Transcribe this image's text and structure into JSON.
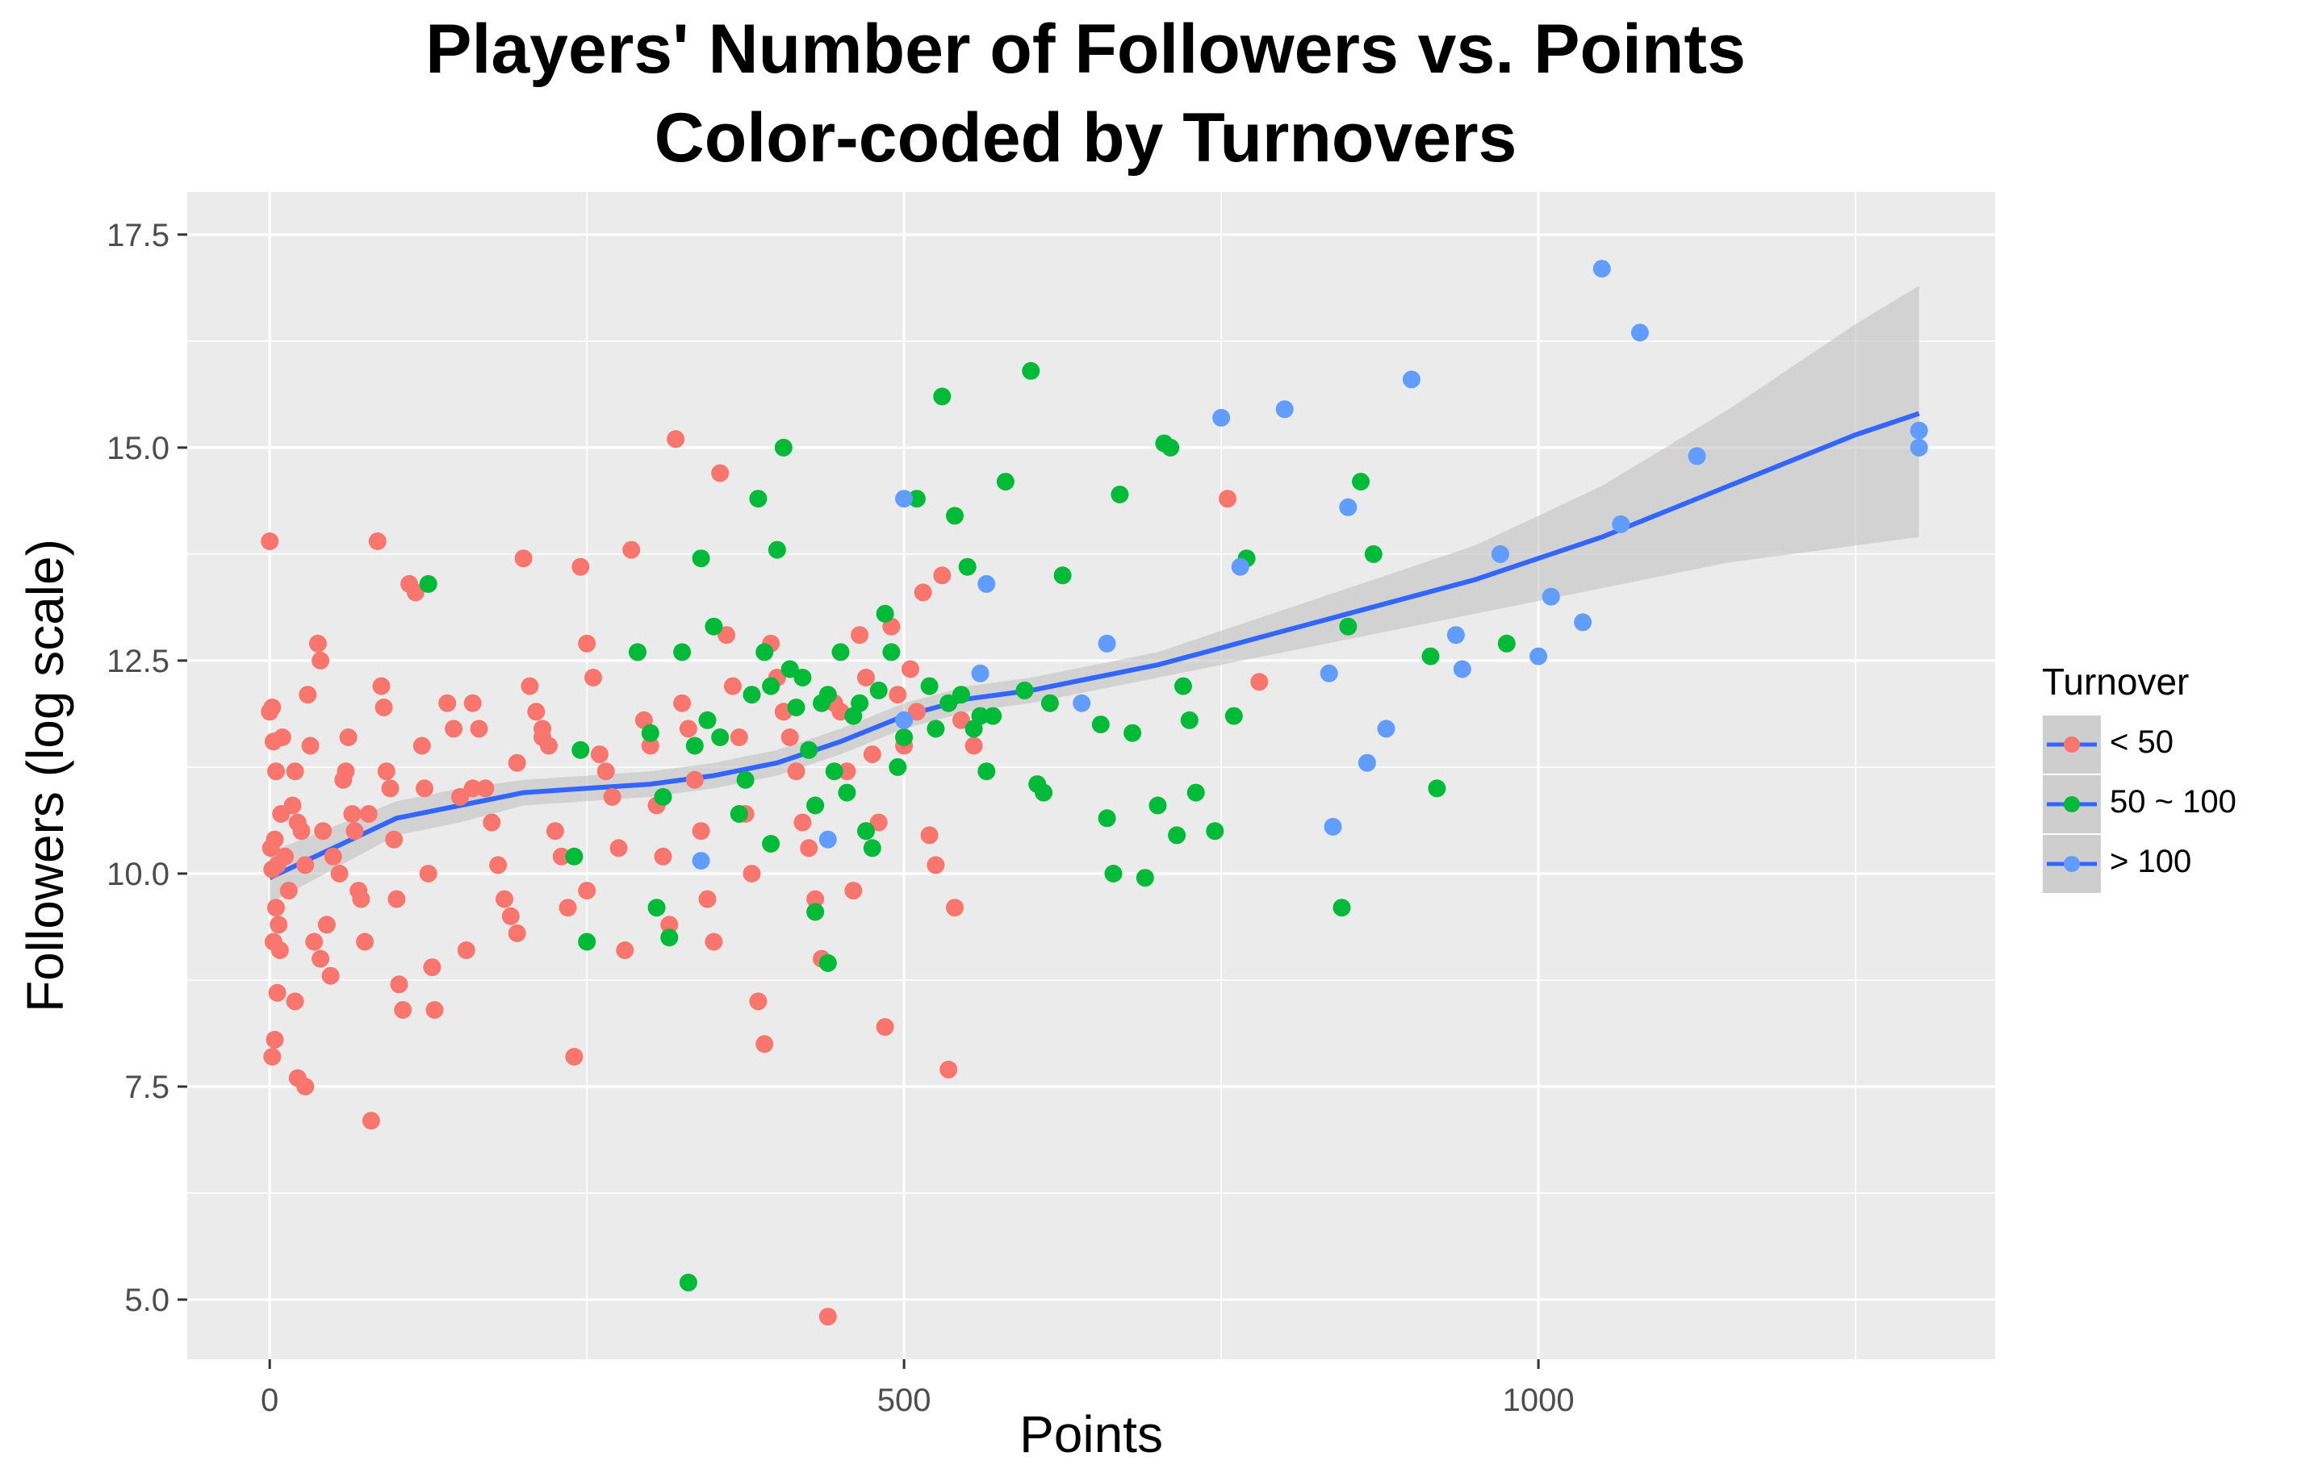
{
  "chart_data": {
    "type": "scatter",
    "title": "Players' Number of Followers vs. Points",
    "subtitle": "Color-coded by Turnovers",
    "xlabel": "Points",
    "ylabel": "Followers (log scale)",
    "xlim": [
      -65,
      1360
    ],
    "ylim": [
      4.3,
      18.0
    ],
    "x_ticks": [
      0,
      500,
      1000
    ],
    "x_tick_labels": [
      "0",
      "500",
      "1000"
    ],
    "y_ticks": [
      5.0,
      7.5,
      10.0,
      12.5,
      15.0,
      17.5
    ],
    "y_tick_labels": [
      "5.0",
      "7.5",
      "10.0",
      "12.5",
      "15.0",
      "17.5"
    ],
    "grid": true,
    "legend": {
      "title": "Turnover",
      "position": "right"
    },
    "colors": {
      "panel": "#EBEBEB",
      "grid": "#FFFFFF",
      "band": "#BEBEBE",
      "trend": "#3366FF"
    },
    "series": [
      {
        "name": "< 50",
        "color": "#F8766D",
        "points": [
          [
            0,
            13.9
          ],
          [
            0,
            11.9
          ],
          [
            2,
            11.95
          ],
          [
            3,
            11.55
          ],
          [
            5,
            11.2
          ],
          [
            1,
            10.3
          ],
          [
            4,
            10.4
          ],
          [
            6,
            10.1
          ],
          [
            2,
            10.05
          ],
          [
            5,
            9.6
          ],
          [
            7,
            9.4
          ],
          [
            3,
            9.2
          ],
          [
            8,
            9.1
          ],
          [
            6,
            8.6
          ],
          [
            4,
            8.05
          ],
          [
            2,
            7.85
          ],
          [
            9,
            10.7
          ],
          [
            12,
            10.2
          ],
          [
            15,
            9.8
          ],
          [
            10,
            11.6
          ],
          [
            18,
            10.8
          ],
          [
            20,
            11.2
          ],
          [
            22,
            10.6
          ],
          [
            25,
            10.5
          ],
          [
            28,
            10.1
          ],
          [
            30,
            12.1
          ],
          [
            32,
            11.5
          ],
          [
            35,
            9.2
          ],
          [
            40,
            9.0
          ],
          [
            20,
            8.5
          ],
          [
            22,
            7.6
          ],
          [
            28,
            7.5
          ],
          [
            38,
            12.7
          ],
          [
            40,
            12.5
          ],
          [
            42,
            10.5
          ],
          [
            45,
            9.4
          ],
          [
            48,
            8.8
          ],
          [
            50,
            10.2
          ],
          [
            55,
            10.0
          ],
          [
            58,
            11.1
          ],
          [
            60,
            11.2
          ],
          [
            62,
            11.6
          ],
          [
            65,
            10.7
          ],
          [
            67,
            10.5
          ],
          [
            70,
            9.8
          ],
          [
            72,
            9.7
          ],
          [
            75,
            9.2
          ],
          [
            78,
            10.7
          ],
          [
            80,
            7.1
          ],
          [
            85,
            13.9
          ],
          [
            88,
            12.2
          ],
          [
            90,
            11.95
          ],
          [
            92,
            11.2
          ],
          [
            95,
            11.0
          ],
          [
            98,
            10.4
          ],
          [
            100,
            9.7
          ],
          [
            102,
            8.7
          ],
          [
            105,
            8.4
          ],
          [
            110,
            13.4
          ],
          [
            115,
            13.3
          ],
          [
            120,
            11.5
          ],
          [
            122,
            11.0
          ],
          [
            125,
            10.0
          ],
          [
            128,
            8.9
          ],
          [
            130,
            8.4
          ],
          [
            140,
            12.0
          ],
          [
            145,
            11.7
          ],
          [
            150,
            10.9
          ],
          [
            155,
            9.1
          ],
          [
            160,
            12.0
          ],
          [
            165,
            11.7
          ],
          [
            170,
            11.0
          ],
          [
            175,
            10.6
          ],
          [
            180,
            10.1
          ],
          [
            185,
            9.7
          ],
          [
            190,
            9.5
          ],
          [
            195,
            9.3
          ],
          [
            200,
            13.7
          ],
          [
            205,
            12.2
          ],
          [
            210,
            11.9
          ],
          [
            215,
            11.6
          ],
          [
            220,
            11.5
          ],
          [
            225,
            10.5
          ],
          [
            230,
            10.2
          ],
          [
            235,
            9.6
          ],
          [
            240,
            7.85
          ],
          [
            245,
            13.6
          ],
          [
            250,
            12.7
          ],
          [
            255,
            12.3
          ],
          [
            260,
            11.4
          ],
          [
            265,
            11.2
          ],
          [
            270,
            10.9
          ],
          [
            275,
            10.3
          ],
          [
            280,
            9.1
          ],
          [
            285,
            13.8
          ],
          [
            290,
            12.6
          ],
          [
            295,
            11.8
          ],
          [
            300,
            11.5
          ],
          [
            305,
            10.8
          ],
          [
            310,
            10.2
          ],
          [
            315,
            9.4
          ],
          [
            320,
            15.1
          ],
          [
            325,
            12.0
          ],
          [
            330,
            11.7
          ],
          [
            335,
            11.1
          ],
          [
            340,
            10.5
          ],
          [
            345,
            9.7
          ],
          [
            350,
            9.2
          ],
          [
            355,
            14.7
          ],
          [
            360,
            12.8
          ],
          [
            365,
            12.2
          ],
          [
            370,
            11.6
          ],
          [
            375,
            10.7
          ],
          [
            380,
            10.0
          ],
          [
            385,
            8.5
          ],
          [
            390,
            8.0
          ],
          [
            395,
            12.7
          ],
          [
            400,
            12.3
          ],
          [
            405,
            11.9
          ],
          [
            410,
            11.6
          ],
          [
            415,
            11.2
          ],
          [
            420,
            10.6
          ],
          [
            425,
            10.3
          ],
          [
            430,
            9.7
          ],
          [
            435,
            9.0
          ],
          [
            440,
            4.8
          ],
          [
            445,
            12.0
          ],
          [
            450,
            11.9
          ],
          [
            455,
            11.2
          ],
          [
            460,
            9.8
          ],
          [
            465,
            12.8
          ],
          [
            470,
            12.3
          ],
          [
            475,
            11.4
          ],
          [
            480,
            10.6
          ],
          [
            485,
            8.2
          ],
          [
            490,
            12.9
          ],
          [
            495,
            12.1
          ],
          [
            500,
            11.5
          ],
          [
            505,
            12.4
          ],
          [
            510,
            11.9
          ],
          [
            515,
            13.3
          ],
          [
            520,
            10.45
          ],
          [
            525,
            10.1
          ],
          [
            530,
            13.5
          ],
          [
            535,
            7.7
          ],
          [
            540,
            9.6
          ],
          [
            545,
            11.8
          ],
          [
            555,
            11.5
          ],
          [
            780,
            12.25
          ],
          [
            755,
            14.4
          ],
          [
            195,
            11.3
          ],
          [
            215,
            11.7
          ],
          [
            160,
            11.0
          ],
          [
            250,
            9.8
          ]
        ]
      },
      {
        "name": "50 ~ 100",
        "color": "#00BA38",
        "points": [
          [
            125,
            13.4
          ],
          [
            240,
            10.2
          ],
          [
            245,
            11.45
          ],
          [
            250,
            9.2
          ],
          [
            290,
            12.6
          ],
          [
            300,
            11.65
          ],
          [
            305,
            9.6
          ],
          [
            310,
            10.9
          ],
          [
            315,
            9.25
          ],
          [
            325,
            12.6
          ],
          [
            330,
            5.2
          ],
          [
            335,
            11.5
          ],
          [
            340,
            13.7
          ],
          [
            345,
            11.8
          ],
          [
            350,
            12.9
          ],
          [
            355,
            11.6
          ],
          [
            370,
            10.7
          ],
          [
            375,
            11.1
          ],
          [
            380,
            12.1
          ],
          [
            385,
            14.4
          ],
          [
            390,
            12.6
          ],
          [
            395,
            12.2
          ],
          [
            400,
            13.8
          ],
          [
            405,
            15.0
          ],
          [
            410,
            12.4
          ],
          [
            415,
            11.95
          ],
          [
            420,
            12.3
          ],
          [
            425,
            11.45
          ],
          [
            430,
            10.8
          ],
          [
            435,
            12.0
          ],
          [
            440,
            12.1
          ],
          [
            445,
            11.2
          ],
          [
            450,
            12.6
          ],
          [
            455,
            10.95
          ],
          [
            460,
            11.85
          ],
          [
            465,
            12.0
          ],
          [
            470,
            10.5
          ],
          [
            475,
            10.3
          ],
          [
            480,
            12.15
          ],
          [
            485,
            13.05
          ],
          [
            490,
            12.6
          ],
          [
            495,
            11.25
          ],
          [
            500,
            11.6
          ],
          [
            510,
            14.4
          ],
          [
            520,
            12.2
          ],
          [
            525,
            11.7
          ],
          [
            530,
            15.6
          ],
          [
            535,
            12.0
          ],
          [
            540,
            14.2
          ],
          [
            545,
            12.1
          ],
          [
            550,
            13.6
          ],
          [
            555,
            11.7
          ],
          [
            560,
            11.85
          ],
          [
            565,
            11.2
          ],
          [
            570,
            11.85
          ],
          [
            580,
            14.6
          ],
          [
            595,
            12.15
          ],
          [
            600,
            15.9
          ],
          [
            605,
            11.05
          ],
          [
            610,
            10.95
          ],
          [
            615,
            12.0
          ],
          [
            625,
            13.5
          ],
          [
            655,
            11.75
          ],
          [
            660,
            10.65
          ],
          [
            665,
            10.0
          ],
          [
            670,
            14.45
          ],
          [
            680,
            11.65
          ],
          [
            690,
            9.95
          ],
          [
            700,
            10.8
          ],
          [
            705,
            15.05
          ],
          [
            710,
            15.0
          ],
          [
            715,
            10.45
          ],
          [
            720,
            12.2
          ],
          [
            725,
            11.8
          ],
          [
            730,
            10.95
          ],
          [
            745,
            10.5
          ],
          [
            760,
            11.85
          ],
          [
            770,
            13.7
          ],
          [
            845,
            9.6
          ],
          [
            850,
            12.9
          ],
          [
            860,
            14.6
          ],
          [
            870,
            13.75
          ],
          [
            915,
            12.55
          ],
          [
            920,
            11.0
          ],
          [
            975,
            12.7
          ],
          [
            440,
            8.95
          ],
          [
            430,
            9.55
          ],
          [
            395,
            10.35
          ]
        ]
      },
      {
        "name": "> 100",
        "color": "#619CFF",
        "points": [
          [
            340,
            10.15
          ],
          [
            440,
            10.4
          ],
          [
            500,
            11.8
          ],
          [
            500,
            14.4
          ],
          [
            560,
            12.35
          ],
          [
            565,
            13.4
          ],
          [
            640,
            12.0
          ],
          [
            660,
            12.7
          ],
          [
            750,
            15.35
          ],
          [
            765,
            13.6
          ],
          [
            800,
            15.45
          ],
          [
            835,
            12.35
          ],
          [
            838,
            10.55
          ],
          [
            850,
            14.3
          ],
          [
            865,
            11.3
          ],
          [
            880,
            11.7
          ],
          [
            900,
            15.8
          ],
          [
            935,
            12.8
          ],
          [
            940,
            12.4
          ],
          [
            970,
            13.75
          ],
          [
            1000,
            12.55
          ],
          [
            1010,
            13.25
          ],
          [
            1035,
            12.95
          ],
          [
            1050,
            17.1
          ],
          [
            1065,
            14.1
          ],
          [
            1080,
            16.35
          ],
          [
            1125,
            14.9
          ],
          [
            1300,
            15.2
          ],
          [
            1300,
            15.0
          ]
        ]
      }
    ],
    "trend": {
      "name": "loess",
      "x": [
        0,
        50,
        100,
        150,
        200,
        250,
        300,
        350,
        400,
        450,
        500,
        550,
        600,
        650,
        700,
        750,
        800,
        850,
        900,
        950,
        1000,
        1050,
        1100,
        1150,
        1200,
        1250,
        1300
      ],
      "y": [
        9.95,
        10.3,
        10.65,
        10.8,
        10.95,
        11.0,
        11.05,
        11.15,
        11.3,
        11.55,
        11.85,
        12.05,
        12.15,
        12.3,
        12.45,
        12.65,
        12.85,
        13.05,
        13.25,
        13.45,
        13.7,
        13.95,
        14.25,
        14.55,
        14.85,
        15.15,
        15.4
      ],
      "upper": [
        10.25,
        10.55,
        10.85,
        11.0,
        11.1,
        11.15,
        11.2,
        11.3,
        11.45,
        11.7,
        12.0,
        12.2,
        12.3,
        12.45,
        12.6,
        12.85,
        13.1,
        13.35,
        13.6,
        13.85,
        14.2,
        14.55,
        15.0,
        15.45,
        15.95,
        16.45,
        16.9
      ],
      "lower": [
        9.65,
        10.05,
        10.45,
        10.6,
        10.8,
        10.85,
        10.9,
        11.0,
        11.15,
        11.4,
        11.7,
        11.9,
        12.0,
        12.15,
        12.3,
        12.45,
        12.6,
        12.75,
        12.9,
        13.05,
        13.2,
        13.35,
        13.5,
        13.65,
        13.75,
        13.85,
        13.95
      ]
    }
  }
}
